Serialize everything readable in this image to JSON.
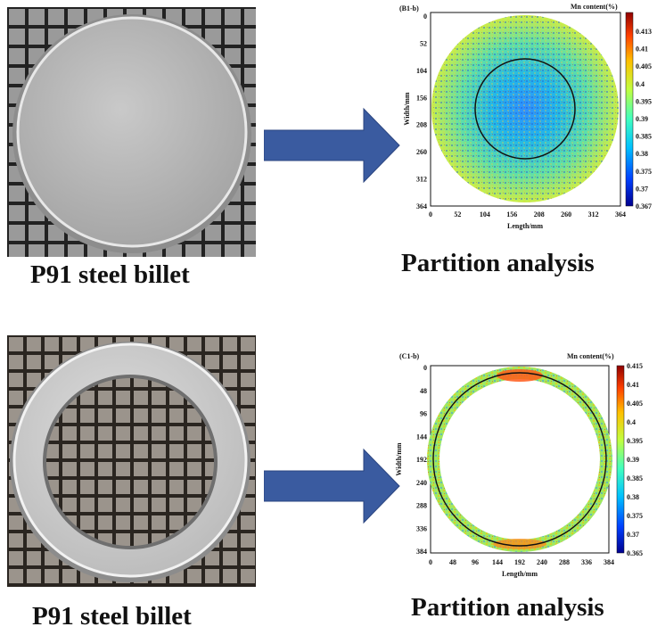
{
  "top": {
    "photo_caption": "P91 steel billet",
    "analysis_caption": "Partition analysis",
    "map": {
      "panel_label": "(B1-b)",
      "colorbar_title": "Mn content(%)",
      "colorbar_ticks": [
        "0.413",
        "0.41",
        "0.405",
        "0.4",
        "0.395",
        "0.39",
        "0.385",
        "0.38",
        "0.375",
        "0.37",
        "0.367"
      ],
      "x_ticks": [
        "0",
        "52",
        "104",
        "156",
        "208",
        "260",
        "312",
        "364"
      ],
      "y_ticks": [
        "0",
        "52",
        "104",
        "156",
        "208",
        "260",
        "312",
        "364"
      ],
      "xlabel": "Length/mm",
      "ylabel": "Width/mm"
    }
  },
  "bottom": {
    "photo_caption": "P91 steel billet",
    "analysis_caption": "Partition analysis",
    "map": {
      "panel_label": "(C1-b)",
      "colorbar_title": "Mn content(%)",
      "colorbar_ticks": [
        "0.415",
        "0.41",
        "0.405",
        "0.4",
        "0.395",
        "0.39",
        "0.385",
        "0.38",
        "0.375",
        "0.37",
        "0.365"
      ],
      "x_ticks": [
        "0",
        "48",
        "96",
        "144",
        "192",
        "240",
        "288",
        "336",
        "384"
      ],
      "y_ticks": [
        "0",
        "48",
        "96",
        "144",
        "192",
        "240",
        "288",
        "336",
        "384"
      ],
      "xlabel": "Length/mm",
      "ylabel": "Width/mm"
    }
  },
  "colors": {
    "arrow": "#3a5ba0",
    "colormap": [
      "#00008f",
      "#0040ff",
      "#00c0ff",
      "#40ffbf",
      "#c0ff40",
      "#ffc000",
      "#ff4000",
      "#8f0000"
    ]
  }
}
